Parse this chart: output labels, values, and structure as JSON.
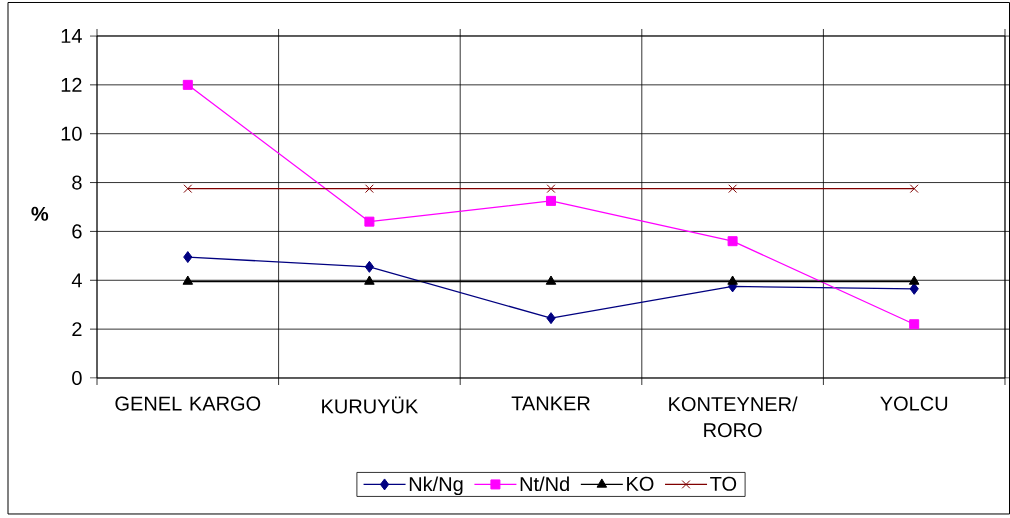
{
  "chart_data": {
    "type": "line",
    "ylabel": "%",
    "categories": [
      "GENEL KARGO",
      "KURUYÜK",
      "TANKER",
      "KONTEYNER/ RORO",
      "YOLCU"
    ],
    "series": [
      {
        "name": "Nk/Ng",
        "color": "#000080",
        "marker": "diamond",
        "values": [
          4.95,
          4.55,
          2.45,
          3.75,
          3.65
        ]
      },
      {
        "name": "Nt/Nd",
        "color": "#ff00ff",
        "marker": "square",
        "values": [
          12,
          6.4,
          7.25,
          5.6,
          2.2
        ]
      },
      {
        "name": "KO",
        "color": "#000000",
        "marker": "triangle",
        "values": [
          3.95,
          3.95,
          3.95,
          3.95,
          3.95
        ]
      },
      {
        "name": "TO",
        "color": "#800000",
        "marker": "cross",
        "values": [
          7.75,
          7.75,
          7.75,
          7.75,
          7.75
        ]
      }
    ],
    "ylim": [
      0,
      14
    ],
    "yticks": [
      0,
      2,
      4,
      6,
      8,
      10,
      12,
      14
    ],
    "grid": true,
    "legend": "bottom",
    "line_style": "solid"
  }
}
